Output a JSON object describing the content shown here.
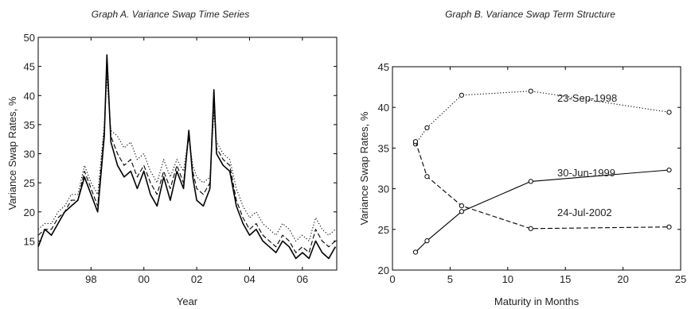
{
  "chart_data": [
    {
      "type": "line",
      "title": "Graph A. Variance Swap Time Series",
      "xlabel": "Year",
      "ylabel": "Variance Swap Rates, %",
      "xlim": [
        1996.0,
        2007.3
      ],
      "ylim": [
        10,
        50
      ],
      "x_ticks": [
        1998,
        2000,
        2002,
        2004,
        2006
      ],
      "x_tick_labels": [
        "98",
        "00",
        "02",
        "04",
        "06"
      ],
      "y_ticks": [
        15,
        20,
        25,
        30,
        35,
        40,
        45,
        50
      ],
      "grid": false,
      "x": [
        1996.0,
        1996.25,
        1996.5,
        1996.75,
        1997.0,
        1997.25,
        1997.5,
        1997.75,
        1998.0,
        1998.25,
        1998.5,
        1998.6,
        1998.75,
        1999.0,
        1999.25,
        1999.5,
        1999.75,
        2000.0,
        2000.25,
        2000.5,
        2000.75,
        2001.0,
        2001.25,
        2001.5,
        2001.7,
        2001.85,
        2002.0,
        2002.25,
        2002.5,
        2002.65,
        2002.75,
        2003.0,
        2003.25,
        2003.5,
        2003.75,
        2004.0,
        2004.25,
        2004.5,
        2004.75,
        2005.0,
        2005.25,
        2005.5,
        2005.75,
        2006.0,
        2006.25,
        2006.5,
        2006.75,
        2007.0,
        2007.25
      ],
      "series": [
        {
          "style": "solid",
          "values": [
            14,
            17,
            16,
            18,
            20,
            21,
            22,
            26,
            23,
            20,
            33,
            47,
            32,
            28,
            26,
            27,
            24,
            27,
            23,
            21,
            26,
            22,
            27,
            24,
            34,
            26,
            22,
            21,
            24,
            41,
            30,
            28,
            27,
            21,
            18,
            16,
            17,
            15,
            14,
            13,
            15,
            14,
            12,
            13,
            12,
            15,
            13,
            12,
            14
          ]
        },
        {
          "style": "dashed",
          "values": [
            16,
            17,
            17,
            19,
            20,
            22,
            22,
            27,
            24,
            21,
            34,
            45,
            33,
            30,
            28,
            29,
            26,
            28,
            25,
            23,
            27,
            24,
            28,
            25,
            33,
            27,
            24,
            23,
            25,
            39,
            31,
            29,
            28,
            22,
            19,
            17,
            18,
            16,
            15,
            14,
            16,
            15,
            13,
            14,
            13,
            17,
            15,
            14,
            15
          ]
        },
        {
          "style": "dotted",
          "values": [
            17,
            18,
            18,
            20,
            21,
            23,
            23,
            28,
            25,
            23,
            35,
            43,
            34,
            33,
            31,
            32,
            29,
            30,
            27,
            25,
            29,
            26,
            29,
            27,
            33,
            28,
            26,
            25,
            26,
            37,
            32,
            30,
            29,
            24,
            21,
            19,
            20,
            18,
            17,
            16,
            18,
            17,
            15,
            16,
            15,
            19,
            17,
            16,
            17
          ]
        }
      ]
    },
    {
      "type": "line",
      "title": "Graph B. Variance Swap Term Structure",
      "xlabel": "Maturity in Months",
      "ylabel": "Variance Swap Rates, %",
      "xlim": [
        0,
        25
      ],
      "ylim": [
        20,
        45
      ],
      "x_ticks": [
        0,
        5,
        10,
        15,
        20,
        25
      ],
      "y_ticks": [
        20,
        25,
        30,
        35,
        40,
        45
      ],
      "grid": false,
      "x": [
        2,
        3,
        6,
        12,
        24
      ],
      "series": [
        {
          "name": "23-Sep-1998",
          "style": "dotted",
          "values": [
            35.5,
            37.5,
            41.5,
            42.0,
            39.4
          ]
        },
        {
          "name": "30-Jun-1999",
          "style": "solid",
          "values": [
            22.2,
            23.6,
            27.2,
            30.9,
            32.3
          ]
        },
        {
          "name": "24-Jul-2002",
          "style": "dashed",
          "values": [
            35.8,
            31.5,
            27.9,
            25.1,
            25.3
          ]
        }
      ]
    }
  ]
}
